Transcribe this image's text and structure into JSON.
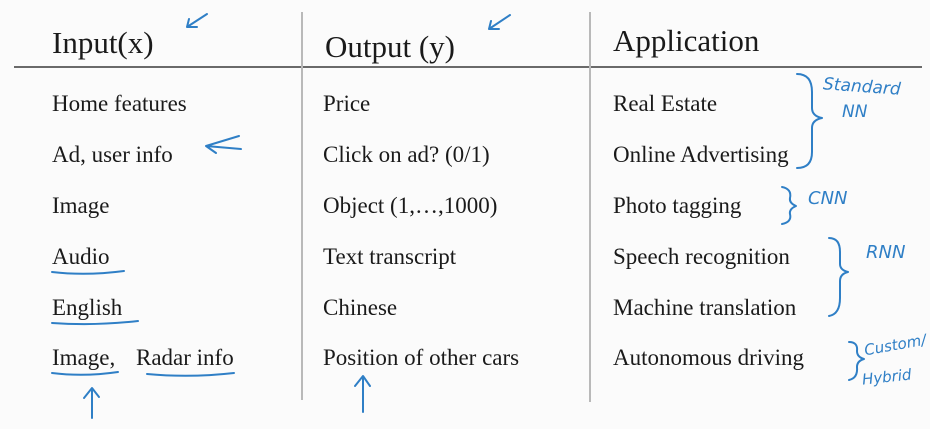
{
  "table": {
    "headers": {
      "input": "Input(x)",
      "output": "Output (y)",
      "application": "Application"
    },
    "rows": [
      {
        "input": "Home features",
        "output": "Price",
        "application": "Real Estate"
      },
      {
        "input": "Ad, user info",
        "output": "Click on ad? (0/1)",
        "application": "Online Advertising"
      },
      {
        "input": "Image",
        "output": "Object (1,…,1000)",
        "application": "Photo tagging"
      },
      {
        "input": "Audio",
        "output": "Text transcript",
        "application": "Speech recognition"
      },
      {
        "input": "English",
        "output": "Chinese",
        "application": "Machine translation"
      },
      {
        "input_a": "Image,",
        "input_b": "Radar info",
        "output": "Position of other cars",
        "application": "Autonomous driving"
      }
    ]
  },
  "annotations": {
    "standard_nn_line1": "Standard",
    "standard_nn_line2": "NN",
    "cnn": "CNN",
    "rnn": "RNN",
    "custom_line1": "Custom/",
    "custom_line2": "Hybrid"
  },
  "ink_color": "#2f7fc6"
}
